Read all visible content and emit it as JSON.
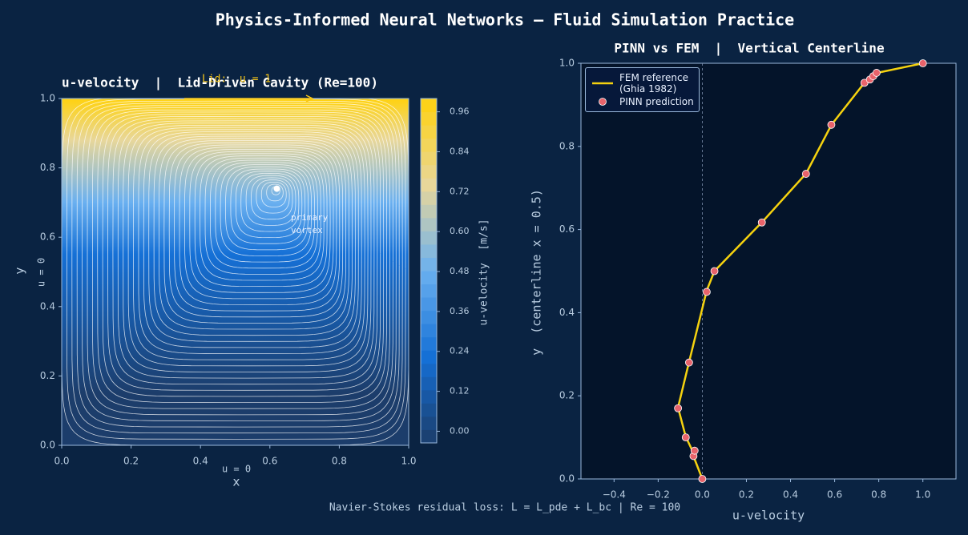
{
  "title": "Physics-Informed Neural Networks  —  Fluid Simulation Practice",
  "footer": "Navier-Stokes residual loss: L = L_pde + L_bc  |  Re = 100",
  "chart_data": [
    {
      "type": "contour",
      "title": "u-velocity  |  Lid-Driven Cavity (Re=100)",
      "xlabel": "x",
      "ylabel": "y",
      "xlim": [
        0,
        1
      ],
      "ylim": [
        0,
        1
      ],
      "xticks": [
        {
          "value": 0,
          "label": "0.0"
        },
        0.2,
        0.4,
        0.6,
        0.8,
        {
          "value": 1,
          "label": "1.0"
        }
      ],
      "yticks": [
        {
          "value": 0,
          "label": "0.0"
        },
        0.2,
        0.4,
        0.6,
        0.8,
        {
          "value": 1,
          "label": "1.0"
        }
      ],
      "colorbar": {
        "label": "u-velocity  [m/s]",
        "clim": [
          -0.035,
          1.0
        ],
        "ticks": [
          {
            "value": 0,
            "label": "0.00"
          },
          0.12,
          0.24,
          0.36,
          0.48,
          {
            "value": 0.6,
            "label": "0.60"
          },
          0.72,
          0.84,
          0.96
        ],
        "colors": [
          "#1c3d6b",
          "#1570d6",
          "#6ab0f0",
          "#e8d79a",
          "#ffd20f"
        ]
      },
      "lid_label": "Lid:  u = 1",
      "wall_label_left": "u = 0",
      "wall_label_bottom": "u = 0",
      "vortex_label": "primary\nvortex",
      "vortex_center": {
        "x": 0.62,
        "y": 0.74
      }
    },
    {
      "type": "line",
      "title": "PINN vs FEM  |  Vertical Centerline",
      "xlabel": "u-velocity",
      "ylabel": "y  (centerline x = 0.5)",
      "xlim": [
        -0.55,
        1.15
      ],
      "ylim": [
        0,
        1
      ],
      "xticks": [
        {
          "value": -0.4,
          "label": "−0.4"
        },
        {
          "value": -0.2,
          "label": "−0.2"
        },
        {
          "value": 0,
          "label": "0.0"
        },
        0.2,
        0.4,
        0.6,
        0.8,
        {
          "value": 1,
          "label": "1.0"
        }
      ],
      "yticks": [
        {
          "value": 0,
          "label": "0.0"
        },
        0.2,
        0.4,
        0.6,
        0.8,
        {
          "value": 1,
          "label": "1.0"
        }
      ],
      "vline": 0,
      "legend": "upper left",
      "series": [
        {
          "name": "FEM reference\n(Ghia 1982)",
          "type": "line",
          "color": "#f5d20f",
          "x": [
            0,
            -0.04,
            -0.04,
            -0.075,
            -0.11,
            -0.06,
            0.02,
            0.055,
            0.27,
            0.47,
            0.585,
            0.735,
            0.76,
            0.775,
            0.79,
            1.0
          ],
          "y": [
            0,
            0.0547,
            0.0625,
            0.1016,
            0.1719,
            0.2813,
            0.4531,
            0.5,
            0.6172,
            0.7344,
            0.8516,
            0.9531,
            0.9609,
            0.9688,
            0.9766,
            1.0
          ]
        },
        {
          "name": "PINN prediction",
          "type": "scatter",
          "color": "#e8636b",
          "x": [
            0,
            -0.04,
            -0.035,
            -0.075,
            -0.11,
            -0.06,
            0.02,
            0.055,
            0.27,
            0.47,
            0.585,
            0.735,
            0.76,
            0.775,
            0.79,
            1.0
          ],
          "y": [
            0,
            0.055,
            0.068,
            0.1,
            0.17,
            0.28,
            0.45,
            0.5,
            0.617,
            0.734,
            0.852,
            0.953,
            0.961,
            0.969,
            0.977,
            1.0
          ]
        }
      ]
    }
  ]
}
